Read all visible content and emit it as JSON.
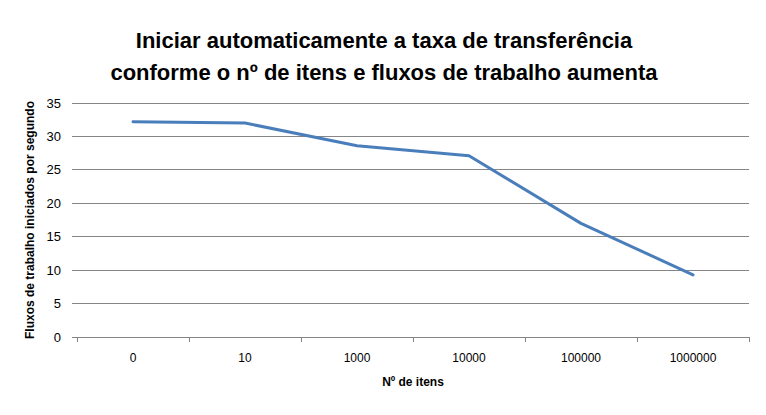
{
  "chart_data": {
    "type": "line",
    "title": "Iniciar automaticamente a taxa de transferência\nconforme o nº de itens e fluxos de trabalho aumenta",
    "x_label": "Nº de itens",
    "y_label": "Fluxos de trabalho iniciados por segundo",
    "categories": [
      "0",
      "10",
      "1000",
      "10000",
      "100000",
      "1000000"
    ],
    "values": [
      32.2,
      32.0,
      28.6,
      27.1,
      17.0,
      9.3
    ],
    "color": "#4a7ebb",
    "ylim": [
      0,
      35
    ],
    "yticks": [
      0,
      5,
      10,
      15,
      20,
      25,
      30,
      35
    ],
    "grid": true
  }
}
